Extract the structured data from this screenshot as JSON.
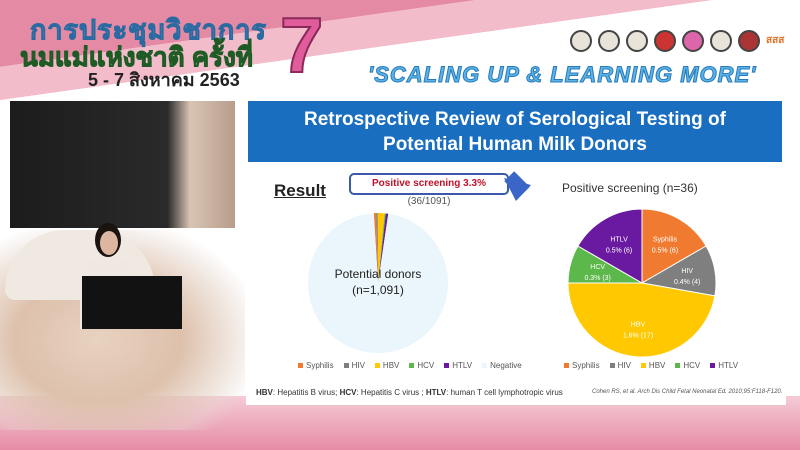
{
  "banner": {
    "line1": "การประชุมวิชาการ",
    "line2": "นมแม่แห่งชาติ ครั้งที่",
    "dates": "5 - 7 สิงหาคม 2563",
    "edition": "7",
    "tagline": "'SCALING UP & LEARNING MORE'",
    "logo_text": "สสส"
  },
  "slide": {
    "title_line1": "Retrospective Review of Serological Testing of",
    "title_line2": "Potential Human Milk Donors",
    "result_heading": "Result",
    "callout_bold": "Positive screening 3.3%",
    "callout_rest": " (36/1091)",
    "footnote_parts": [
      "HBV",
      ": Hepatitis B virus; ",
      "HCV",
      ": Hepatitis C virus ; ",
      "HTLV",
      ": human T cell lymphotropic virus"
    ],
    "citation": "Cohen RS, et al. Arch Dis Child Fetal Neonatal Ed. 2010;95:F118-F120."
  },
  "colors": {
    "Syphilis": "#f07a30",
    "HIV": "#7f7f7f",
    "HBV": "#ffc800",
    "HCV": "#5cb84a",
    "HTLV": "#6a1aa0",
    "Negative": "#eaf6fc",
    "title_bg": "#1a6ec0"
  },
  "chart_data": [
    {
      "type": "pie",
      "title": "",
      "center_label_line1": "Potential donors",
      "center_label_line2": "(n=1,091)",
      "categories": [
        "Syphilis",
        "HIV",
        "HBV",
        "HCV",
        "HTLV",
        "Negative"
      ],
      "values": [
        6,
        4,
        17,
        3,
        6,
        1055
      ],
      "legend": "bottom"
    },
    {
      "type": "pie",
      "title": "Positive screening (n=36)",
      "categories": [
        "Syphilis",
        "HIV",
        "HBV",
        "HCV",
        "HTLV"
      ],
      "values": [
        6,
        4,
        17,
        3,
        6
      ],
      "labels": [
        "0.5% (6)",
        "0.4% (4)",
        "1.6% (17)",
        "0.3% (3)",
        "0.5% (6)"
      ],
      "legend": "bottom"
    }
  ]
}
